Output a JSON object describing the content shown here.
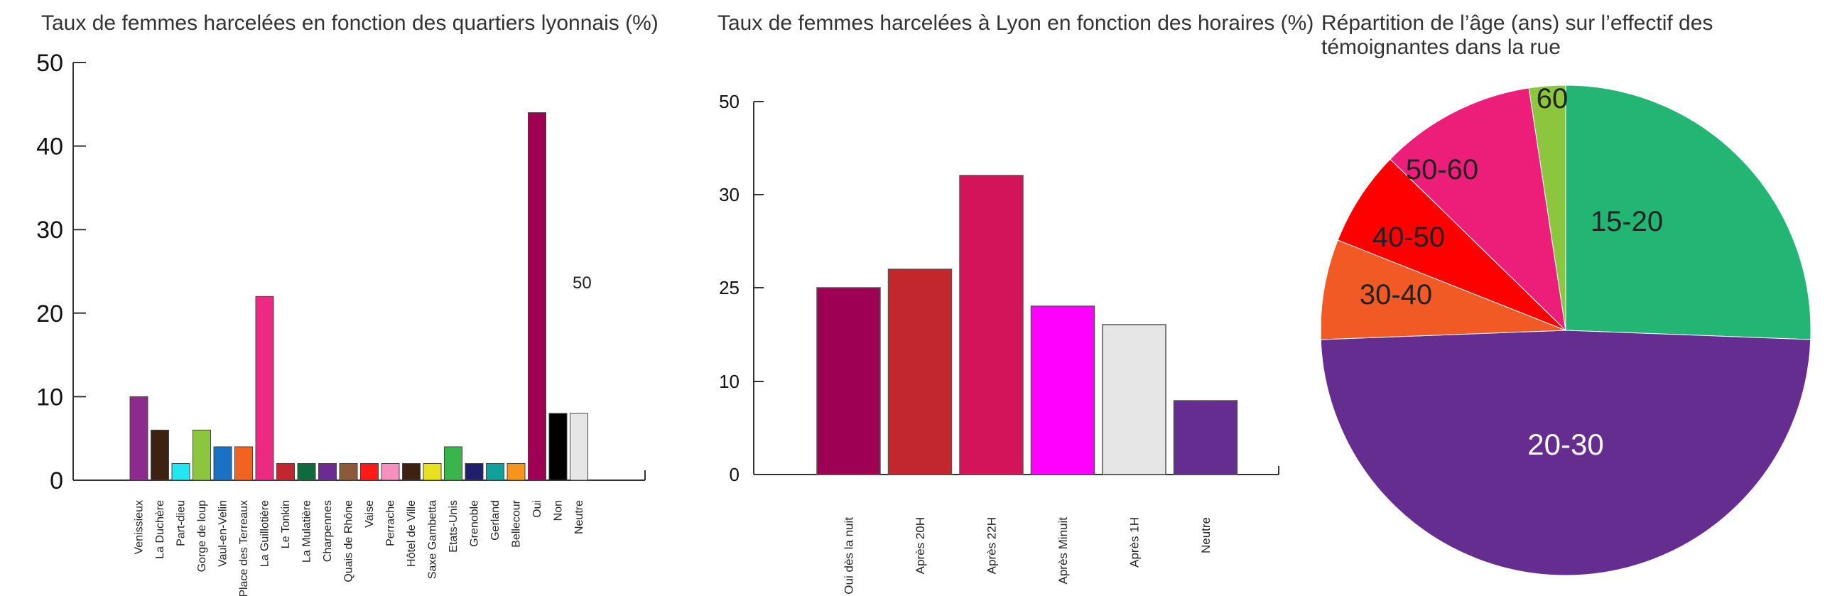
{
  "chart_data": [
    {
      "type": "bar",
      "title": "Taux de femmes harcelées en fonction des quartiers lyonnais (%)",
      "xlabel": "",
      "ylabel": "",
      "ylim": [
        0,
        50
      ],
      "yticks": [
        "0",
        "10",
        "20",
        "30",
        "40",
        "50"
      ],
      "annotation": "50",
      "categories": [
        "Venissieux",
        "La Duchère",
        "Part-dieu",
        "Gorge de loup",
        "Vaul-en-Velin",
        "Place des Terreaux",
        "La Guillotière",
        "Le Tonkin",
        "La Mulatière",
        "Charpennes",
        "Quais de Rhône",
        "Vaise",
        "Perrache",
        "Hôtel de Ville",
        "Saxe Gambetta",
        "Etats-Unis",
        "Grenoble",
        "Gerland",
        "Bellecour",
        "Oui",
        "Non",
        "Neutre"
      ],
      "values": [
        10,
        6,
        2,
        6,
        4,
        4,
        22,
        2,
        2,
        2,
        2,
        2,
        2,
        2,
        2,
        4,
        2,
        2,
        2,
        44,
        8,
        8
      ],
      "colors": [
        "#8e2a8e",
        "#3d2214",
        "#22e6f0",
        "#8cc63f",
        "#1a72c4",
        "#f26322",
        "#ec2a84",
        "#c1272d",
        "#0e6b3e",
        "#6a2c91",
        "#8a5a3a",
        "#ff1a1a",
        "#f78fbf",
        "#3d2214",
        "#e8e21e",
        "#3ab54a",
        "#1f1f6e",
        "#12a19a",
        "#f7941d",
        "#9e0053",
        "#000000",
        "#e6e6e6"
      ],
      "grid": false
    },
    {
      "type": "bar",
      "title": "Taux de femmes harcelées à Lyon en fonction des horaires (%)",
      "xlabel": "",
      "ylabel": "",
      "yticks": [
        "0",
        "10",
        "25",
        "30",
        "50"
      ],
      "categories": [
        "Oui dès la nuit",
        "Après 20H",
        "Après 22H",
        "Après Minuit",
        "Après 1H",
        "Neutre"
      ],
      "values": [
        25,
        26,
        31.5,
        24,
        23,
        8
      ],
      "colors": [
        "#9e0053",
        "#c1272d",
        "#d4145a",
        "#ff00ff",
        "#e6e6e6",
        "#662d91"
      ],
      "grid": false
    },
    {
      "type": "pie",
      "title": "Répartition de l’âge (ans) sur l’effectif des témoignantes dans la rue",
      "labels": [
        "15-20",
        "20-30",
        "30-40",
        "40-50",
        "50-60",
        "60"
      ],
      "values": [
        25.6,
        48.8,
        6.6,
        6.3,
        10.3,
        2.4
      ],
      "colors": [
        "#22b573",
        "#662d91",
        "#f15a24",
        "#ff0000",
        "#ed1e79",
        "#8cc63f"
      ],
      "label_colors": [
        "#222222",
        "#ffffff",
        "#222222",
        "#222222",
        "#222222",
        "#222222"
      ]
    }
  ]
}
